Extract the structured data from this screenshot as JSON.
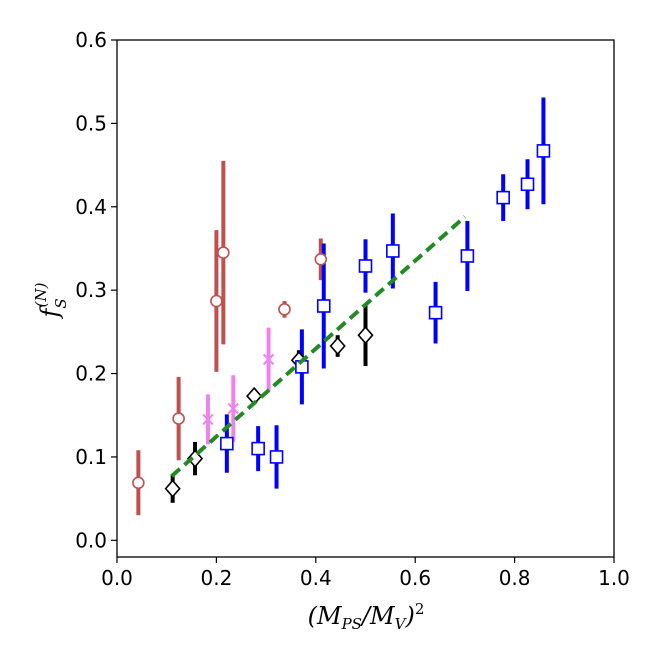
{
  "chart_data": {
    "type": "scatter",
    "title": "",
    "xlabel": "(M_PS/M_V)^2",
    "ylabel": "f_S^(N)",
    "xlim": [
      0.0,
      1.0
    ],
    "ylim": [
      -0.02,
      0.6
    ],
    "x_ticks": [
      "0.0",
      "0.2",
      "0.4",
      "0.6",
      "0.8",
      "1.0"
    ],
    "y_ticks": [
      "0.0",
      "0.1",
      "0.2",
      "0.3",
      "0.4",
      "0.5",
      "0.6"
    ],
    "grid": false,
    "legend": "none",
    "series": [
      {
        "marker": "circle",
        "color": "#c0504d",
        "points": [
          {
            "x": 0.043,
            "y": 0.069,
            "err": 0.039
          },
          {
            "x": 0.124,
            "y": 0.146,
            "err": 0.05
          },
          {
            "x": 0.2,
            "y": 0.287,
            "err": 0.085
          },
          {
            "x": 0.214,
            "y": 0.345,
            "err": 0.11
          },
          {
            "x": 0.337,
            "y": 0.277,
            "err": 0.01
          },
          {
            "x": 0.41,
            "y": 0.337,
            "err": 0.025
          }
        ]
      },
      {
        "marker": "x",
        "color": "#ee82ee",
        "points": [
          {
            "x": 0.183,
            "y": 0.145,
            "err": 0.03
          },
          {
            "x": 0.234,
            "y": 0.158,
            "err": 0.04
          },
          {
            "x": 0.305,
            "y": 0.217,
            "err": 0.038
          }
        ]
      },
      {
        "marker": "diamond",
        "color": "#000000",
        "points": [
          {
            "x": 0.112,
            "y": 0.062,
            "err": 0.017
          },
          {
            "x": 0.157,
            "y": 0.098,
            "err": 0.02
          },
          {
            "x": 0.276,
            "y": 0.173,
            "err": 0.008
          },
          {
            "x": 0.366,
            "y": 0.216,
            "err": 0.012
          },
          {
            "x": 0.444,
            "y": 0.233,
            "err": 0.013
          },
          {
            "x": 0.5,
            "y": 0.246,
            "err": 0.037
          }
        ]
      },
      {
        "marker": "square",
        "color": "#0000ff",
        "points": [
          {
            "x": 0.221,
            "y": 0.116,
            "err": 0.035
          },
          {
            "x": 0.284,
            "y": 0.11,
            "err": 0.027
          },
          {
            "x": 0.321,
            "y": 0.1,
            "err": 0.038
          },
          {
            "x": 0.372,
            "y": 0.208,
            "err": 0.045
          },
          {
            "x": 0.416,
            "y": 0.281,
            "err": 0.075
          },
          {
            "x": 0.5,
            "y": 0.329,
            "err": 0.032
          },
          {
            "x": 0.555,
            "y": 0.347,
            "err": 0.045
          },
          {
            "x": 0.641,
            "y": 0.273,
            "err": 0.037
          },
          {
            "x": 0.705,
            "y": 0.341,
            "err": 0.042
          },
          {
            "x": 0.777,
            "y": 0.411,
            "err": 0.028
          },
          {
            "x": 0.826,
            "y": 0.427,
            "err": 0.03
          },
          {
            "x": 0.858,
            "y": 0.467,
            "err": 0.064
          }
        ]
      }
    ],
    "fit_line": {
      "color": "#228b22",
      "style": "dashed",
      "x": [
        0.11,
        0.7
      ],
      "y": [
        0.077,
        0.388
      ]
    }
  }
}
